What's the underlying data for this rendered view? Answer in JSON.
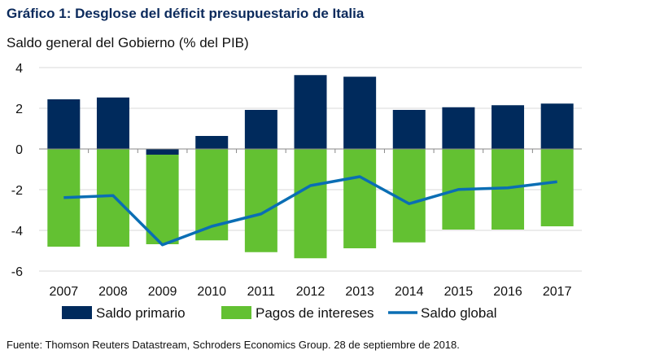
{
  "chart_data": {
    "type": "bar",
    "title": "Gráfico 1: Desglose del déficit presupuestario de Italia",
    "ylabel": "Saldo general del Gobierno (% del PIB)",
    "xlabel": "",
    "categories": [
      "2007",
      "2008",
      "2009",
      "2010",
      "2011",
      "2012",
      "2013",
      "2014",
      "2015",
      "2016",
      "2017"
    ],
    "ylim": [
      -6,
      4
    ],
    "yticks": [
      4,
      2,
      0,
      -2,
      -4,
      -6
    ],
    "grid": true,
    "stacked": true,
    "legend_position": "bottom",
    "series": [
      {
        "name": "Saldo primario",
        "type": "bar",
        "color": "#002a5c",
        "values": [
          2.44,
          2.53,
          -0.28,
          0.64,
          1.92,
          3.63,
          3.55,
          1.92,
          2.05,
          2.15,
          2.23
        ]
      },
      {
        "name": "Pagos de intereses",
        "type": "bar",
        "color": "#63c132",
        "values": [
          -4.8,
          -4.8,
          -4.4,
          -4.49,
          -5.07,
          -5.37,
          -4.88,
          -4.59,
          -3.96,
          -3.96,
          -3.8
        ]
      },
      {
        "name": "Saldo global",
        "type": "line",
        "color": "#0a6eb4",
        "values": [
          -2.39,
          -2.29,
          -4.71,
          -3.8,
          -3.19,
          -1.8,
          -1.36,
          -2.69,
          -1.99,
          -1.91,
          -1.61
        ]
      }
    ]
  },
  "footer": "Fuente: Thomson Reuters Datastream, Schroders Economics Group. 28 de septiembre de 2018."
}
